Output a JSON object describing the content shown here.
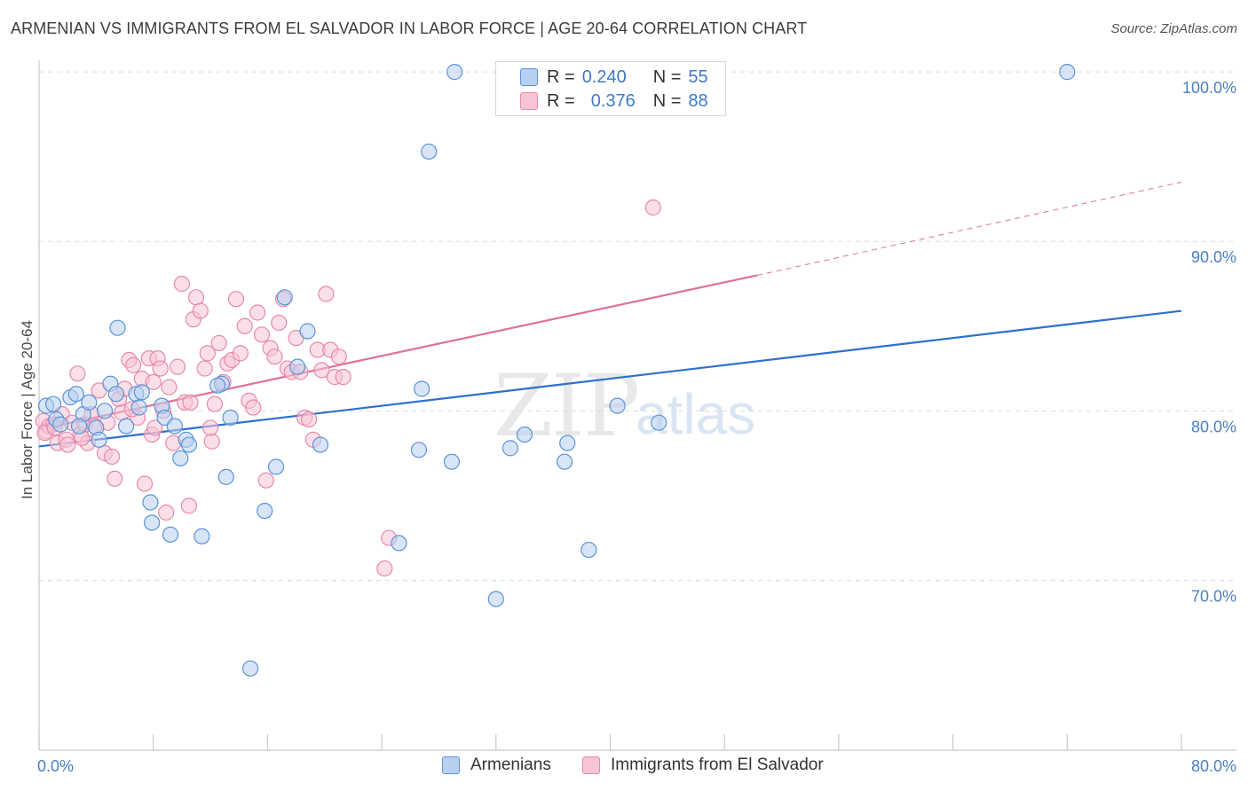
{
  "title": "ARMENIAN VS IMMIGRANTS FROM EL SALVADOR IN LABOR FORCE | AGE 20-64 CORRELATION CHART",
  "source": "Source: ZipAtlas.com",
  "watermark": {
    "zip": "ZIP",
    "atlas": "atlas"
  },
  "legend": {
    "series1": {
      "r_label": "R =",
      "r_value": "0.240",
      "n_label": "N =",
      "n_value": "55"
    },
    "series2": {
      "r_label": "R =",
      "r_value": "0.376",
      "n_label": "N =",
      "n_value": "88"
    }
  },
  "bottom_legend": {
    "series1": "Armenians",
    "series2": "Immigrants from El Salvador"
  },
  "colors": {
    "blue": "#5b93d8",
    "blue_fill": "#b8d0f0",
    "blue_line": "#2f6fcc",
    "pink": "#e889a8",
    "pink_fill": "#f7c4d4",
    "pink_line": "#e0709a"
  },
  "chart_data": {
    "type": "scatter",
    "title": "ARMENIAN VS IMMIGRANTS FROM EL SALVADOR IN LABOR FORCE | AGE 20-64 CORRELATION CHART",
    "xlabel": "",
    "ylabel": "In Labor Force | Age 20-64",
    "xlim": [
      0,
      80
    ],
    "ylim": [
      60.5,
      101
    ],
    "x_tick_labels": [
      "0.0%",
      "80.0%"
    ],
    "y_ticks": [
      70,
      80,
      90,
      100
    ],
    "y_tick_labels": [
      "70.0%",
      "80.0%",
      "90.0%",
      "100.0%"
    ],
    "grid": "horizontal dashed",
    "series": [
      {
        "name": "Armenians",
        "points": [
          [
            0.5,
            80.3
          ],
          [
            1.0,
            80.4
          ],
          [
            1.2,
            79.5
          ],
          [
            1.5,
            79.2
          ],
          [
            2.2,
            80.8
          ],
          [
            2.6,
            81.0
          ],
          [
            3.1,
            79.8
          ],
          [
            3.5,
            80.5
          ],
          [
            4.0,
            79.0
          ],
          [
            4.2,
            78.3
          ],
          [
            4.6,
            80.0
          ],
          [
            5.0,
            81.6
          ],
          [
            5.4,
            81.0
          ],
          [
            5.5,
            84.9
          ],
          [
            6.1,
            79.1
          ],
          [
            6.8,
            81.0
          ],
          [
            7.0,
            80.2
          ],
          [
            7.2,
            81.1
          ],
          [
            7.8,
            74.6
          ],
          [
            7.9,
            73.4
          ],
          [
            8.6,
            80.3
          ],
          [
            8.8,
            79.6
          ],
          [
            9.2,
            72.7
          ],
          [
            9.5,
            79.1
          ],
          [
            9.9,
            77.2
          ],
          [
            10.3,
            78.3
          ],
          [
            10.5,
            78.0
          ],
          [
            11.4,
            72.6
          ],
          [
            12.8,
            81.6
          ],
          [
            13.1,
            76.1
          ],
          [
            13.4,
            79.6
          ],
          [
            15.8,
            74.1
          ],
          [
            16.6,
            76.7
          ],
          [
            17.2,
            86.7
          ],
          [
            18.1,
            82.6
          ],
          [
            18.8,
            84.7
          ],
          [
            19.7,
            78.0
          ],
          [
            25.2,
            72.2
          ],
          [
            26.6,
            77.7
          ],
          [
            26.8,
            81.3
          ],
          [
            27.3,
            95.3
          ],
          [
            28.9,
            77.0
          ],
          [
            29.1,
            100.0
          ],
          [
            32.0,
            68.9
          ],
          [
            33.0,
            77.8
          ],
          [
            34.0,
            78.6
          ],
          [
            36.8,
            77.0
          ],
          [
            37.0,
            78.1
          ],
          [
            38.5,
            71.8
          ],
          [
            40.5,
            80.3
          ],
          [
            43.4,
            79.3
          ],
          [
            72.0,
            100.0
          ],
          [
            14.8,
            64.8
          ],
          [
            2.8,
            79.1
          ],
          [
            12.5,
            81.5
          ]
        ]
      },
      {
        "name": "Immigrants from El Salvador",
        "points": [
          [
            0.3,
            79.4
          ],
          [
            0.5,
            78.8
          ],
          [
            0.7,
            79.1
          ],
          [
            1.0,
            79.2
          ],
          [
            1.3,
            78.1
          ],
          [
            1.6,
            79.8
          ],
          [
            1.9,
            78.3
          ],
          [
            2.3,
            79.3
          ],
          [
            2.7,
            82.2
          ],
          [
            2.9,
            78.6
          ],
          [
            3.2,
            79.2
          ],
          [
            3.4,
            78.1
          ],
          [
            3.7,
            79.8
          ],
          [
            3.9,
            79.1
          ],
          [
            4.2,
            81.2
          ],
          [
            4.6,
            77.5
          ],
          [
            4.8,
            79.3
          ],
          [
            5.1,
            77.3
          ],
          [
            5.3,
            76.0
          ],
          [
            5.6,
            80.7
          ],
          [
            5.8,
            79.9
          ],
          [
            6.0,
            81.3
          ],
          [
            6.3,
            83.0
          ],
          [
            6.6,
            82.7
          ],
          [
            6.9,
            79.6
          ],
          [
            7.2,
            81.9
          ],
          [
            7.4,
            75.7
          ],
          [
            7.7,
            83.1
          ],
          [
            7.9,
            78.6
          ],
          [
            8.1,
            79.0
          ],
          [
            8.3,
            83.1
          ],
          [
            8.5,
            82.5
          ],
          [
            8.7,
            80.0
          ],
          [
            8.9,
            74.0
          ],
          [
            9.1,
            81.4
          ],
          [
            9.4,
            78.1
          ],
          [
            9.7,
            82.6
          ],
          [
            10.0,
            87.5
          ],
          [
            10.2,
            80.5
          ],
          [
            10.5,
            74.4
          ],
          [
            10.8,
            85.4
          ],
          [
            11.0,
            86.7
          ],
          [
            11.3,
            85.9
          ],
          [
            11.6,
            82.5
          ],
          [
            11.8,
            83.4
          ],
          [
            12.1,
            78.2
          ],
          [
            12.3,
            80.4
          ],
          [
            12.6,
            84.0
          ],
          [
            12.9,
            81.7
          ],
          [
            13.2,
            82.8
          ],
          [
            13.5,
            83.0
          ],
          [
            13.8,
            86.6
          ],
          [
            14.1,
            83.4
          ],
          [
            14.4,
            85.0
          ],
          [
            14.7,
            80.6
          ],
          [
            15.0,
            80.2
          ],
          [
            15.3,
            85.8
          ],
          [
            15.6,
            84.5
          ],
          [
            15.9,
            75.9
          ],
          [
            16.2,
            83.7
          ],
          [
            16.5,
            83.2
          ],
          [
            16.8,
            85.2
          ],
          [
            17.1,
            86.6
          ],
          [
            17.4,
            82.5
          ],
          [
            17.7,
            82.3
          ],
          [
            18.0,
            84.3
          ],
          [
            18.3,
            82.3
          ],
          [
            18.6,
            79.6
          ],
          [
            18.9,
            79.5
          ],
          [
            19.2,
            78.3
          ],
          [
            19.5,
            83.6
          ],
          [
            19.8,
            82.4
          ],
          [
            20.1,
            86.9
          ],
          [
            20.4,
            83.6
          ],
          [
            20.7,
            82.0
          ],
          [
            21.0,
            83.2
          ],
          [
            21.3,
            82.0
          ],
          [
            24.2,
            70.7
          ],
          [
            24.5,
            72.5
          ],
          [
            43.0,
            92.0
          ],
          [
            0.4,
            78.7
          ],
          [
            1.1,
            79.0
          ],
          [
            2.0,
            78.0
          ],
          [
            3.0,
            78.4
          ],
          [
            6.5,
            80.1
          ],
          [
            8.0,
            81.7
          ],
          [
            10.6,
            80.5
          ],
          [
            12.0,
            79.0
          ]
        ]
      }
    ],
    "trend_lines": [
      {
        "series": "Armenians",
        "x": [
          0,
          80
        ],
        "y": [
          77.9,
          85.9
        ],
        "style": "solid"
      },
      {
        "series": "Immigrants from El Salvador",
        "x": [
          0,
          50.3
        ],
        "y": [
          78.9,
          88.0
        ],
        "style": "solid"
      },
      {
        "series": "Immigrants from El Salvador",
        "x": [
          50.3,
          80
        ],
        "y": [
          88.0,
          93.5
        ],
        "style": "dashed"
      }
    ]
  }
}
